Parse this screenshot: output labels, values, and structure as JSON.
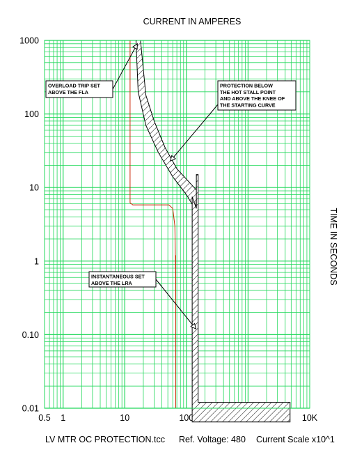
{
  "chart_data": {
    "type": "line",
    "title": "CURRENT IN AMPERES",
    "ylabel": "TIME IN SECONDS",
    "xscale": "log",
    "yscale": "log",
    "xlim": [
      0.5,
      10000
    ],
    "ylim": [
      0.01,
      1000
    ],
    "grid": true,
    "x_tick_labels": [
      {
        "value": 0.5,
        "label": "0.5"
      },
      {
        "value": 1,
        "label": "1"
      },
      {
        "value": 10,
        "label": "10"
      },
      {
        "value": 100,
        "label": "100"
      },
      {
        "value": 1000,
        "label": "1K"
      },
      {
        "value": 10000,
        "label": "10K"
      }
    ],
    "y_tick_labels": [
      {
        "value": 1000,
        "label": "1000"
      },
      {
        "value": 100,
        "label": "100"
      },
      {
        "value": 10,
        "label": "10"
      },
      {
        "value": 1,
        "label": "1"
      },
      {
        "value": 0.1,
        "label": "0.10"
      },
      {
        "value": 0.01,
        "label": "0.01"
      }
    ],
    "series": [
      {
        "kind": "line",
        "color": "#cc2200",
        "points": [
          [
            12.2,
            1000
          ],
          [
            12.2,
            6.2
          ],
          [
            13.5,
            5.8
          ],
          [
            52,
            5.8
          ],
          [
            60,
            5.2
          ],
          [
            65,
            3.0
          ],
          [
            67,
            0.6
          ],
          [
            67,
            0.01
          ]
        ]
      },
      {
        "kind": "line",
        "color": "#cc2200",
        "points": [
          [
            67,
            1.2
          ],
          [
            67,
            0.3
          ]
        ]
      },
      {
        "kind": "band-hatched",
        "color": "#000000",
        "upper": [
          [
            18,
            1000
          ],
          [
            22,
            180
          ],
          [
            30,
            80
          ],
          [
            45,
            35
          ],
          [
            70,
            18
          ],
          [
            120,
            11
          ],
          [
            150,
            9
          ]
        ],
        "lower": [
          [
            15.2,
            1000
          ],
          [
            16.5,
            200
          ],
          [
            22,
            70
          ],
          [
            35,
            30
          ],
          [
            60,
            14
          ],
          [
            100,
            8
          ],
          [
            140,
            5
          ]
        ]
      },
      {
        "kind": "region-hatched",
        "color": "#000000",
        "polygon": [
          [
            145,
            15
          ],
          [
            155,
            15
          ],
          [
            155,
            0.012
          ],
          [
            4800,
            0.012
          ],
          [
            4800,
            0.0065
          ],
          [
            124,
            0.0065
          ],
          [
            124,
            7.5
          ],
          [
            145,
            5.2
          ]
        ]
      }
    ],
    "annotations": [
      {
        "lines": [
          "OVERLOAD TRIP SET",
          "ABOVE THE FLA"
        ],
        "target": [
          16,
          900
        ]
      },
      {
        "lines": [
          "PROTECTION BELOW",
          "THE HOT STALL POINT",
          "AND ABOVE THE KNEE OF",
          "THE STARTING CURVE"
        ],
        "target": [
          55,
          23
        ]
      },
      {
        "lines": [
          "INSTANTANEOUS SET",
          "ABOVE THE LRA"
        ],
        "target": [
          142,
          0.12
        ]
      }
    ]
  },
  "footer": {
    "file": "LV MTR OC PROTECTION.tcc",
    "ref_voltage": "Ref. Voltage: 480",
    "current_scale": "Current Scale x10^1"
  },
  "colors": {
    "grid": "#21d85a",
    "relay_curve": "#cc2200",
    "hatch": "#000000"
  }
}
